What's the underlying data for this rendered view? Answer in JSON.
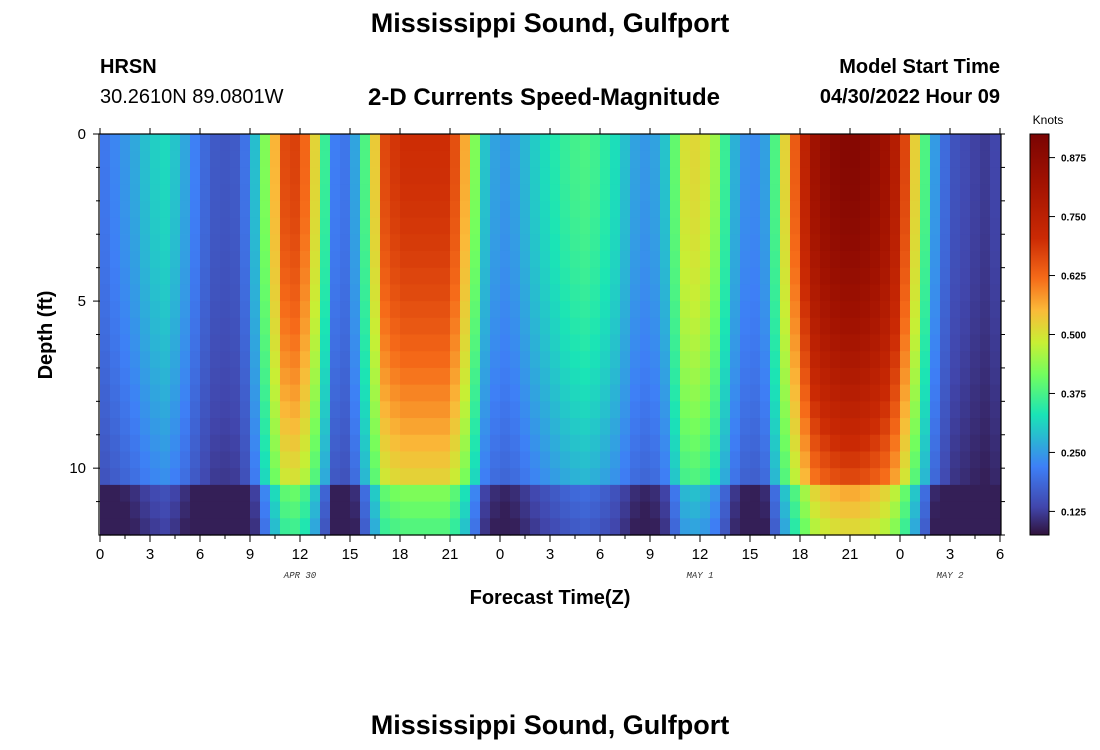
{
  "header": {
    "title": "Mississippi Sound, Gulfport",
    "station_id": "HRSN",
    "station_coords": "30.2610N  89.0801W",
    "plot_title": "2-D Currents Speed-Magnitude",
    "model_start_label": "Model Start Time",
    "model_start_value": "04/30/2022 Hour 09"
  },
  "footer": {
    "title_repeat": "Mississippi Sound, Gulfport"
  },
  "chart_data": {
    "type": "heatmap",
    "title": "2-D Currents Speed-Magnitude",
    "xlabel": "Forecast Time(Z)",
    "ylabel": "Depth (ft)",
    "x_unit": "forecast hour from 00Z Apr 30",
    "xlim": [
      0,
      54
    ],
    "ylim": [
      0,
      12
    ],
    "y_inverted": true,
    "x_ticks": [
      0,
      3,
      6,
      9,
      12,
      15,
      18,
      21,
      24,
      27,
      30,
      33,
      36,
      39,
      42,
      45,
      48,
      51,
      54
    ],
    "x_tick_labels": [
      "0",
      "3",
      "6",
      "9",
      "12",
      "15",
      "18",
      "21",
      "0",
      "3",
      "6",
      "9",
      "12",
      "15",
      "18",
      "21",
      "0",
      "3",
      "6"
    ],
    "y_ticks": [
      0,
      5,
      10
    ],
    "y_tick_labels": [
      "0",
      "5",
      "10"
    ],
    "date_labels": [
      {
        "x": 12,
        "text": "APR 30"
      },
      {
        "x": 36,
        "text": "MAY 1"
      },
      {
        "x": 51,
        "text": "MAY 2"
      }
    ],
    "colorbar": {
      "label": "Knots",
      "min": 0.075,
      "max": 0.925,
      "ticks": [
        0.125,
        0.25,
        0.375,
        0.5,
        0.625,
        0.75,
        0.875
      ],
      "tick_labels": [
        "0.125",
        "0.250",
        "0.375",
        "0.500",
        "0.625",
        "0.750",
        "0.875"
      ]
    },
    "speed_profile": {
      "description_hours": [
        0,
        1,
        2,
        3,
        4,
        5,
        6,
        7,
        8,
        9,
        10,
        11,
        12,
        13,
        14,
        15,
        16,
        17,
        18,
        19,
        20,
        21,
        22,
        23,
        24,
        25,
        26,
        27,
        28,
        29,
        30,
        31,
        32,
        33,
        34,
        35,
        36,
        37,
        38,
        39,
        40,
        41,
        42,
        43,
        44,
        45,
        46,
        47,
        48,
        49,
        50,
        51,
        52,
        53,
        54
      ],
      "surface_knots": [
        0.2,
        0.23,
        0.26,
        0.3,
        0.32,
        0.27,
        0.2,
        0.16,
        0.16,
        0.22,
        0.45,
        0.66,
        0.68,
        0.5,
        0.22,
        0.2,
        0.4,
        0.66,
        0.7,
        0.7,
        0.7,
        0.7,
        0.55,
        0.3,
        0.24,
        0.26,
        0.3,
        0.33,
        0.36,
        0.38,
        0.36,
        0.32,
        0.26,
        0.24,
        0.3,
        0.5,
        0.52,
        0.44,
        0.28,
        0.22,
        0.26,
        0.5,
        0.7,
        0.84,
        0.88,
        0.9,
        0.88,
        0.84,
        0.74,
        0.5,
        0.26,
        0.16,
        0.14,
        0.12,
        0.14
      ]
    }
  }
}
